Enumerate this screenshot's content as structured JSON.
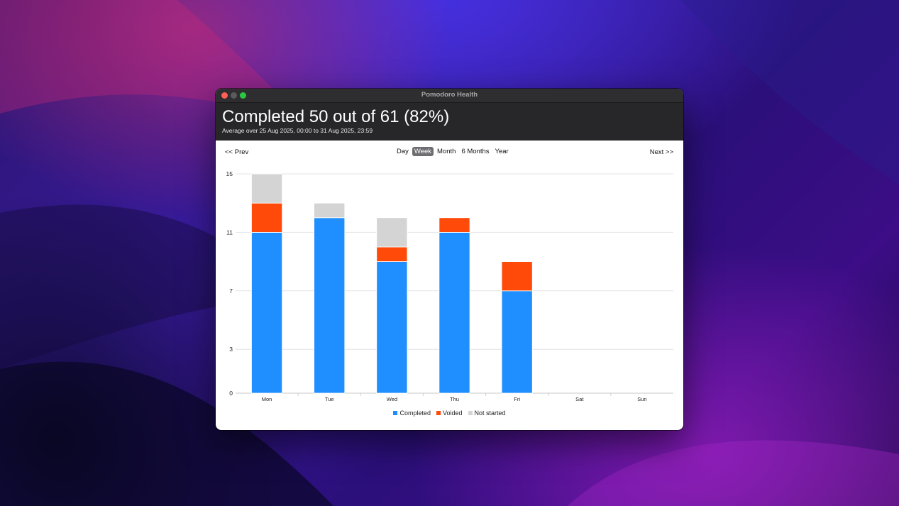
{
  "window": {
    "title": "Pomodoro Health"
  },
  "header": {
    "headline": "Completed 50 out of 61 (82%)",
    "subline": "Average over 25 Aug 2025, 00:00 to 31 Aug 2025, 23:59"
  },
  "nav": {
    "prev": "<< Prev",
    "next": "Next >>",
    "periods": [
      "Day",
      "Week",
      "Month",
      "6 Months",
      "Year"
    ],
    "active": "Week"
  },
  "legend": [
    {
      "label": "Completed",
      "color": "#1f8fff"
    },
    {
      "label": "Voided",
      "color": "#ff4a0a"
    },
    {
      "label": "Not started",
      "color": "#d4d4d4"
    }
  ],
  "chart_data": {
    "type": "bar",
    "stacked": true,
    "categories": [
      "Mon",
      "Tue",
      "Wed",
      "Thu",
      "Fri",
      "Sat",
      "Sun"
    ],
    "series": [
      {
        "name": "Completed",
        "color": "#1f8fff",
        "values": [
          11,
          12,
          9,
          11,
          7,
          0,
          0
        ]
      },
      {
        "name": "Voided",
        "color": "#ff4a0a",
        "values": [
          2,
          0,
          1,
          1,
          2,
          0,
          0
        ]
      },
      {
        "name": "Not started",
        "color": "#d4d4d4",
        "values": [
          2,
          1,
          2,
          0,
          0,
          0,
          0
        ]
      }
    ],
    "ylim": [
      0,
      15
    ],
    "yticks": [
      0,
      3,
      7,
      11,
      15
    ],
    "grid": true,
    "legend_position": "bottom"
  }
}
